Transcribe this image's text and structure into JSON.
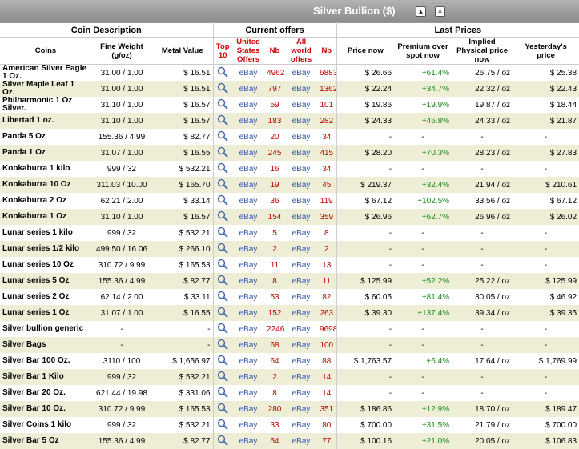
{
  "title": "Silver Bullion ($)",
  "groups": {
    "coin": "Coin Description",
    "offers": "Current offers",
    "prices": "Last Prices"
  },
  "columns": {
    "coins": "Coins",
    "fine_weight": "Fine Weight (g/oz)",
    "metal_value": "Metal Value",
    "top10": "Top 10",
    "us_offers": "United States Offers",
    "nb": "Nb",
    "world_offers": "All world offers",
    "price_now": "Price now",
    "premium": "Premium over spot now",
    "implied": "Implied Physical price now",
    "yesterday": "Yesterday's price"
  },
  "ebay_label": "eBay",
  "rows": [
    {
      "name": "American Silver Eagle 1 Oz.",
      "weight": "31.00 / 1.00",
      "value": "$ 16.51",
      "us_nb": "4962",
      "world_nb": "6883",
      "price": "$ 26.66",
      "premium": "+61.4%",
      "implied": "26.75 / oz",
      "yesterday": "$ 25.38"
    },
    {
      "name": "Silver Maple Leaf 1 Oz.",
      "weight": "31.00 / 1.00",
      "value": "$ 16.51",
      "us_nb": "797",
      "world_nb": "1362",
      "price": "$ 22.24",
      "premium": "+34.7%",
      "implied": "22.32 / oz",
      "yesterday": "$ 22.43"
    },
    {
      "name": "Philharmonic 1 Oz Silver.",
      "weight": "31.10 / 1.00",
      "value": "$ 16.57",
      "us_nb": "59",
      "world_nb": "101",
      "price": "$ 19.86",
      "premium": "+19.9%",
      "implied": "19.87 / oz",
      "yesterday": "$ 18.44"
    },
    {
      "name": "Libertad 1 oz.",
      "weight": "31.10 / 1.00",
      "value": "$ 16.57",
      "us_nb": "183",
      "world_nb": "282",
      "price": "$ 24.33",
      "premium": "+46.8%",
      "implied": "24.33 / oz",
      "yesterday": "$ 21.87"
    },
    {
      "name": "Panda 5 Oz",
      "weight": "155.36 / 4.99",
      "value": "$ 82.77",
      "us_nb": "20",
      "world_nb": "34",
      "price": "-",
      "premium": "-",
      "implied": "-",
      "yesterday": "-"
    },
    {
      "name": "Panda 1 Oz",
      "weight": "31.07 / 1.00",
      "value": "$ 16.55",
      "us_nb": "245",
      "world_nb": "415",
      "price": "$ 28.20",
      "premium": "+70.3%",
      "implied": "28.23 / oz",
      "yesterday": "$ 27.83"
    },
    {
      "name": "Kookaburra 1 kilo",
      "weight": "999 / 32",
      "value": "$ 532.21",
      "us_nb": "16",
      "world_nb": "34",
      "price": "-",
      "premium": "-",
      "implied": "-",
      "yesterday": "-"
    },
    {
      "name": "Kookaburra 10 Oz",
      "weight": "311.03 / 10.00",
      "value": "$ 165.70",
      "us_nb": "19",
      "world_nb": "45",
      "price": "$ 219.37",
      "premium": "+32.4%",
      "implied": "21.94 / oz",
      "yesterday": "$ 210.61"
    },
    {
      "name": "Kookaburra 2 Oz",
      "weight": "62.21 / 2.00",
      "value": "$ 33.14",
      "us_nb": "36",
      "world_nb": "119",
      "price": "$ 67.12",
      "premium": "+102.5%",
      "implied": "33.56 / oz",
      "yesterday": "$ 67.12"
    },
    {
      "name": "Kookaburra 1 Oz",
      "weight": "31.10 / 1.00",
      "value": "$ 16.57",
      "us_nb": "154",
      "world_nb": "359",
      "price": "$ 26.96",
      "premium": "+62.7%",
      "implied": "26.96 / oz",
      "yesterday": "$ 26.02"
    },
    {
      "name": "Lunar series 1 kilo",
      "weight": "999 / 32",
      "value": "$ 532.21",
      "us_nb": "5",
      "world_nb": "8",
      "price": "-",
      "premium": "-",
      "implied": "-",
      "yesterday": "-"
    },
    {
      "name": "Lunar series 1/2 kilo",
      "weight": "499.50 / 16.06",
      "value": "$ 266.10",
      "us_nb": "2",
      "world_nb": "2",
      "price": "-",
      "premium": "-",
      "implied": "-",
      "yesterday": "-"
    },
    {
      "name": "Lunar series 10 Oz",
      "weight": "310.72 / 9.99",
      "value": "$ 165.53",
      "us_nb": "11",
      "world_nb": "13",
      "price": "-",
      "premium": "-",
      "implied": "-",
      "yesterday": "-"
    },
    {
      "name": "Lunar series 5 Oz",
      "weight": "155.36 / 4.99",
      "value": "$ 82.77",
      "us_nb": "8",
      "world_nb": "11",
      "price": "$ 125.99",
      "premium": "+52.2%",
      "implied": "25.22 / oz",
      "yesterday": "$ 125.99"
    },
    {
      "name": "Lunar series 2 Oz",
      "weight": "62.14 / 2.00",
      "value": "$ 33.11",
      "us_nb": "53",
      "world_nb": "82",
      "price": "$ 60.05",
      "premium": "+81.4%",
      "implied": "30.05 / oz",
      "yesterday": "$ 46.92"
    },
    {
      "name": "Lunar series 1 Oz",
      "weight": "31.07 / 1.00",
      "value": "$ 16.55",
      "us_nb": "152",
      "world_nb": "263",
      "price": "$ 39.30",
      "premium": "+137.4%",
      "implied": "39.34 / oz",
      "yesterday": "$ 39.35"
    },
    {
      "name": "Silver bullion generic",
      "weight": "-",
      "value": "-",
      "us_nb": "2246",
      "world_nb": "9698",
      "price": "-",
      "premium": "-",
      "implied": "-",
      "yesterday": "-"
    },
    {
      "name": "Silver Bags",
      "weight": "-",
      "value": "-",
      "us_nb": "68",
      "world_nb": "100",
      "price": "-",
      "premium": "-",
      "implied": "-",
      "yesterday": "-"
    },
    {
      "name": "Silver Bar 100 Oz.",
      "weight": "3110 / 100",
      "value": "$ 1,656.97",
      "us_nb": "64",
      "world_nb": "88",
      "price": "$ 1,763.57",
      "premium": "+6.4%",
      "implied": "17.64 / oz",
      "yesterday": "$ 1,769.99"
    },
    {
      "name": "Silver Bar 1 Kilo",
      "weight": "999 / 32",
      "value": "$ 532.21",
      "us_nb": "2",
      "world_nb": "14",
      "price": "-",
      "premium": "-",
      "implied": "-",
      "yesterday": "-"
    },
    {
      "name": "Silver Bar 20 Oz.",
      "weight": "621.44 / 19.98",
      "value": "$ 331.06",
      "us_nb": "8",
      "world_nb": "14",
      "price": "-",
      "premium": "-",
      "implied": "-",
      "yesterday": "-"
    },
    {
      "name": "Silver Bar 10 Oz.",
      "weight": "310.72 / 9.99",
      "value": "$ 165.53",
      "us_nb": "280",
      "world_nb": "351",
      "price": "$ 186.86",
      "premium": "+12.9%",
      "implied": "18.70 / oz",
      "yesterday": "$ 189.47"
    },
    {
      "name": "Silver Coins 1 kilo",
      "weight": "999 / 32",
      "value": "$ 532.21",
      "us_nb": "33",
      "world_nb": "80",
      "price": "$ 700.00",
      "premium": "+31.5%",
      "implied": "21.79 / oz",
      "yesterday": "$ 700.00"
    },
    {
      "name": "Silver Bar 5 Oz",
      "weight": "155.36 / 4.99",
      "value": "$ 82.77",
      "us_nb": "54",
      "world_nb": "77",
      "price": "$ 100.16",
      "premium": "+21.0%",
      "implied": "20.05 / oz",
      "yesterday": "$ 106.83"
    }
  ]
}
